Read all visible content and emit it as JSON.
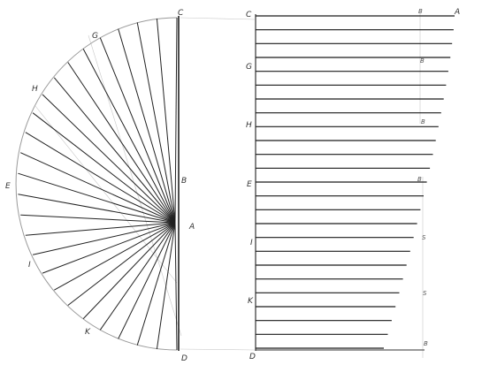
{
  "diagram": {
    "left_labels": {
      "C": "C",
      "G": "G",
      "H": "H",
      "E": "E",
      "B": "B",
      "A": "A",
      "I": "I",
      "K": "K",
      "D": "D"
    },
    "right_labels": {
      "C": "C",
      "G": "G",
      "H": "H",
      "E": "E",
      "I": "I",
      "K": "K",
      "D": "D"
    },
    "end_labels": {
      "A": "A",
      "B": "B",
      "S": "S"
    },
    "ray_count": 26,
    "ruled_line_count": 25
  }
}
